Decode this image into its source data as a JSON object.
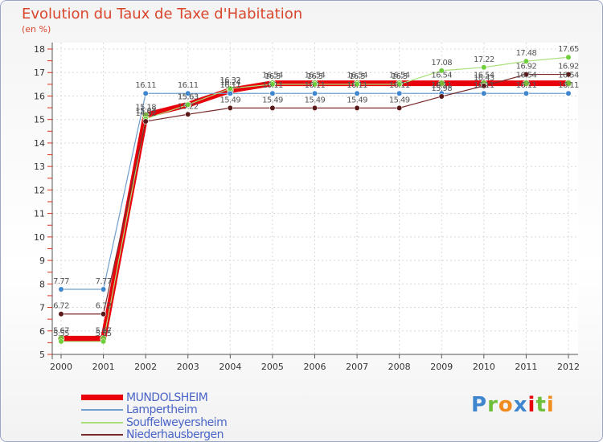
{
  "chart_data": {
    "type": "line",
    "title": "Evolution du Taux de Taxe d'Habitation",
    "subtitle": "(en %)",
    "x": [
      "2000",
      "2001",
      "2002",
      "2003",
      "2004",
      "2005",
      "2006",
      "2007",
      "2008",
      "2009",
      "2010",
      "2011",
      "2012"
    ],
    "ylim": [
      5,
      18
    ],
    "yticks": [
      5,
      6,
      7,
      8,
      9,
      10,
      11,
      12,
      13,
      14,
      15,
      16,
      17,
      18
    ],
    "grid": true,
    "legend_position": "bottom-left",
    "series": [
      {
        "name": "MUNDOLSHEIM",
        "color": "#e8000b",
        "marker": "#7ab83a",
        "values": [
          5.67,
          5.67,
          15.18,
          15.63,
          16.24,
          16.54,
          16.54,
          16.54,
          16.54,
          16.54,
          16.54,
          16.54,
          16.54
        ],
        "labels": [
          "5.67",
          "5.67",
          "15.18",
          "15.63",
          "16.24",
          "16.54",
          "16.54",
          "16.54",
          "16.54",
          "16.54",
          "16.54",
          "16.54",
          "16.54"
        ]
      },
      {
        "name": "Lampertheim",
        "color": "#6f9fcf",
        "marker": "#3f86cf",
        "values": [
          7.77,
          7.77,
          16.11,
          16.11,
          16.11,
          16.11,
          16.11,
          16.11,
          16.11,
          16.11,
          16.11,
          16.11,
          16.11
        ],
        "labels": [
          "7.77",
          "7.77",
          "16.11",
          "16.11",
          "16.11",
          "16.11",
          "16.11",
          "16.11",
          "16.11",
          "16.11",
          "16.11",
          "16.11",
          "16.11"
        ]
      },
      {
        "name": "Souffelweyersheim",
        "color": "#a8e07a",
        "marker": "#6fcf3a",
        "values": [
          5.55,
          5.55,
          15.03,
          15.63,
          16.32,
          16.5,
          16.5,
          16.5,
          16.5,
          17.08,
          17.22,
          17.48,
          17.65
        ],
        "labels": [
          "5.55",
          "5.55",
          "15.03",
          "15.63",
          "16.32",
          "16.5",
          "16.5",
          "16.5",
          "16.5",
          "17.08",
          "17.22",
          "17.48",
          "17.65"
        ]
      },
      {
        "name": "Niederhausbergen",
        "color": "#7a2a2a",
        "marker": "#5a1a1a",
        "values": [
          6.72,
          6.72,
          14.92,
          15.22,
          15.49,
          15.49,
          15.49,
          15.49,
          15.49,
          15.98,
          16.43,
          16.92,
          16.92
        ],
        "labels": [
          "6.72",
          "6.72",
          "14.92",
          "15.22",
          "15.49",
          "15.49",
          "15.49",
          "15.49",
          "15.49",
          "15.98",
          "16.43",
          "16.92",
          "16.92"
        ]
      }
    ]
  },
  "logo": {
    "letters": [
      "P",
      "r",
      "o",
      "x",
      "i",
      "t",
      "i"
    ],
    "colors": [
      "#3f86cf",
      "#6fbf3a",
      "#f08c1e",
      "#3f86cf",
      "#e8000b",
      "#6fbf3a",
      "#f08c1e"
    ]
  }
}
